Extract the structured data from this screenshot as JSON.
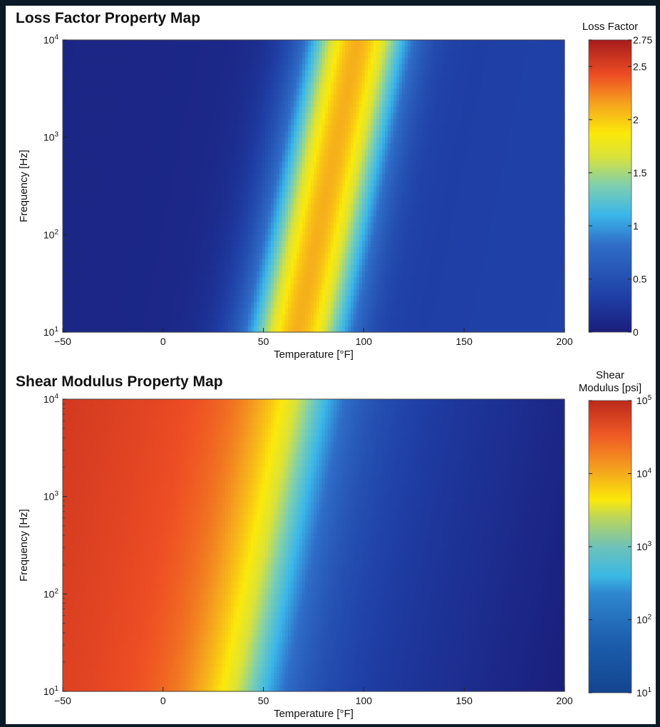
{
  "chart_data": [
    {
      "type": "heatmap",
      "title": "Loss Factor Property Map",
      "xlabel": "Temperature [°F]",
      "ylabel": "Frequency [Hz]",
      "x_ticks": [
        -50,
        0,
        50,
        100,
        150,
        200
      ],
      "xlim": [
        -50,
        200
      ],
      "y_scale": "log",
      "ylim": [
        10,
        10000
      ],
      "y_ticks": [
        {
          "value": 10,
          "base": "10",
          "exp": "1"
        },
        {
          "value": 100,
          "base": "10",
          "exp": "2"
        },
        {
          "value": 1000,
          "base": "10",
          "exp": "3"
        },
        {
          "value": 10000,
          "base": "10",
          "exp": "4"
        }
      ],
      "colorbar": {
        "label": [
          "Loss Factor"
        ],
        "scale": "linear",
        "range": [
          0,
          2.75
        ],
        "ticks": [
          {
            "value": 0,
            "label": "0"
          },
          {
            "value": 0.5,
            "label": "0.5"
          },
          {
            "value": 1,
            "label": "1"
          },
          {
            "value": 1.5,
            "label": "1.5"
          },
          {
            "value": 2,
            "label": "2"
          },
          {
            "value": 2.5,
            "label": "2.5"
          },
          {
            "value": 2.75,
            "label": "2.75"
          }
        ]
      },
      "model": {
        "kind": "peak",
        "peak_temperature_at_10Hz": 67,
        "peak_temperature_at_10000Hz": 97,
        "peak_value": 2.1,
        "background_left": 0.08,
        "background_right": 0.35
      },
      "colormap": "jet"
    },
    {
      "type": "heatmap",
      "title": "Shear Modulus Property Map",
      "xlabel": "Temperature [°F]",
      "ylabel": "Frequency [Hz]",
      "x_ticks": [
        -50,
        0,
        50,
        100,
        150,
        200
      ],
      "xlim": [
        -50,
        200
      ],
      "y_scale": "log",
      "ylim": [
        10,
        10000
      ],
      "y_ticks": [
        {
          "value": 10,
          "base": "10",
          "exp": "1"
        },
        {
          "value": 100,
          "base": "10",
          "exp": "2"
        },
        {
          "value": 1000,
          "base": "10",
          "exp": "3"
        },
        {
          "value": 10000,
          "base": "10",
          "exp": "4"
        }
      ],
      "colorbar": {
        "label": [
          "Shear",
          "Modulus [psi]"
        ],
        "scale": "log",
        "range": [
          10,
          100000
        ],
        "ticks": [
          {
            "value": 10,
            "base": "10",
            "exp": "1"
          },
          {
            "value": 100,
            "base": "10",
            "exp": "2"
          },
          {
            "value": 1000,
            "base": "10",
            "exp": "3"
          },
          {
            "value": 10000,
            "base": "10",
            "exp": "4"
          },
          {
            "value": 100000,
            "base": "10",
            "exp": "5"
          }
        ]
      },
      "model": {
        "kind": "transition",
        "transition_temperature_at_10Hz": 45,
        "transition_temperature_at_10000Hz": 75,
        "glassy_modulus": 25000,
        "rubbery_modulus": 30
      },
      "colormap": "jet"
    }
  ]
}
